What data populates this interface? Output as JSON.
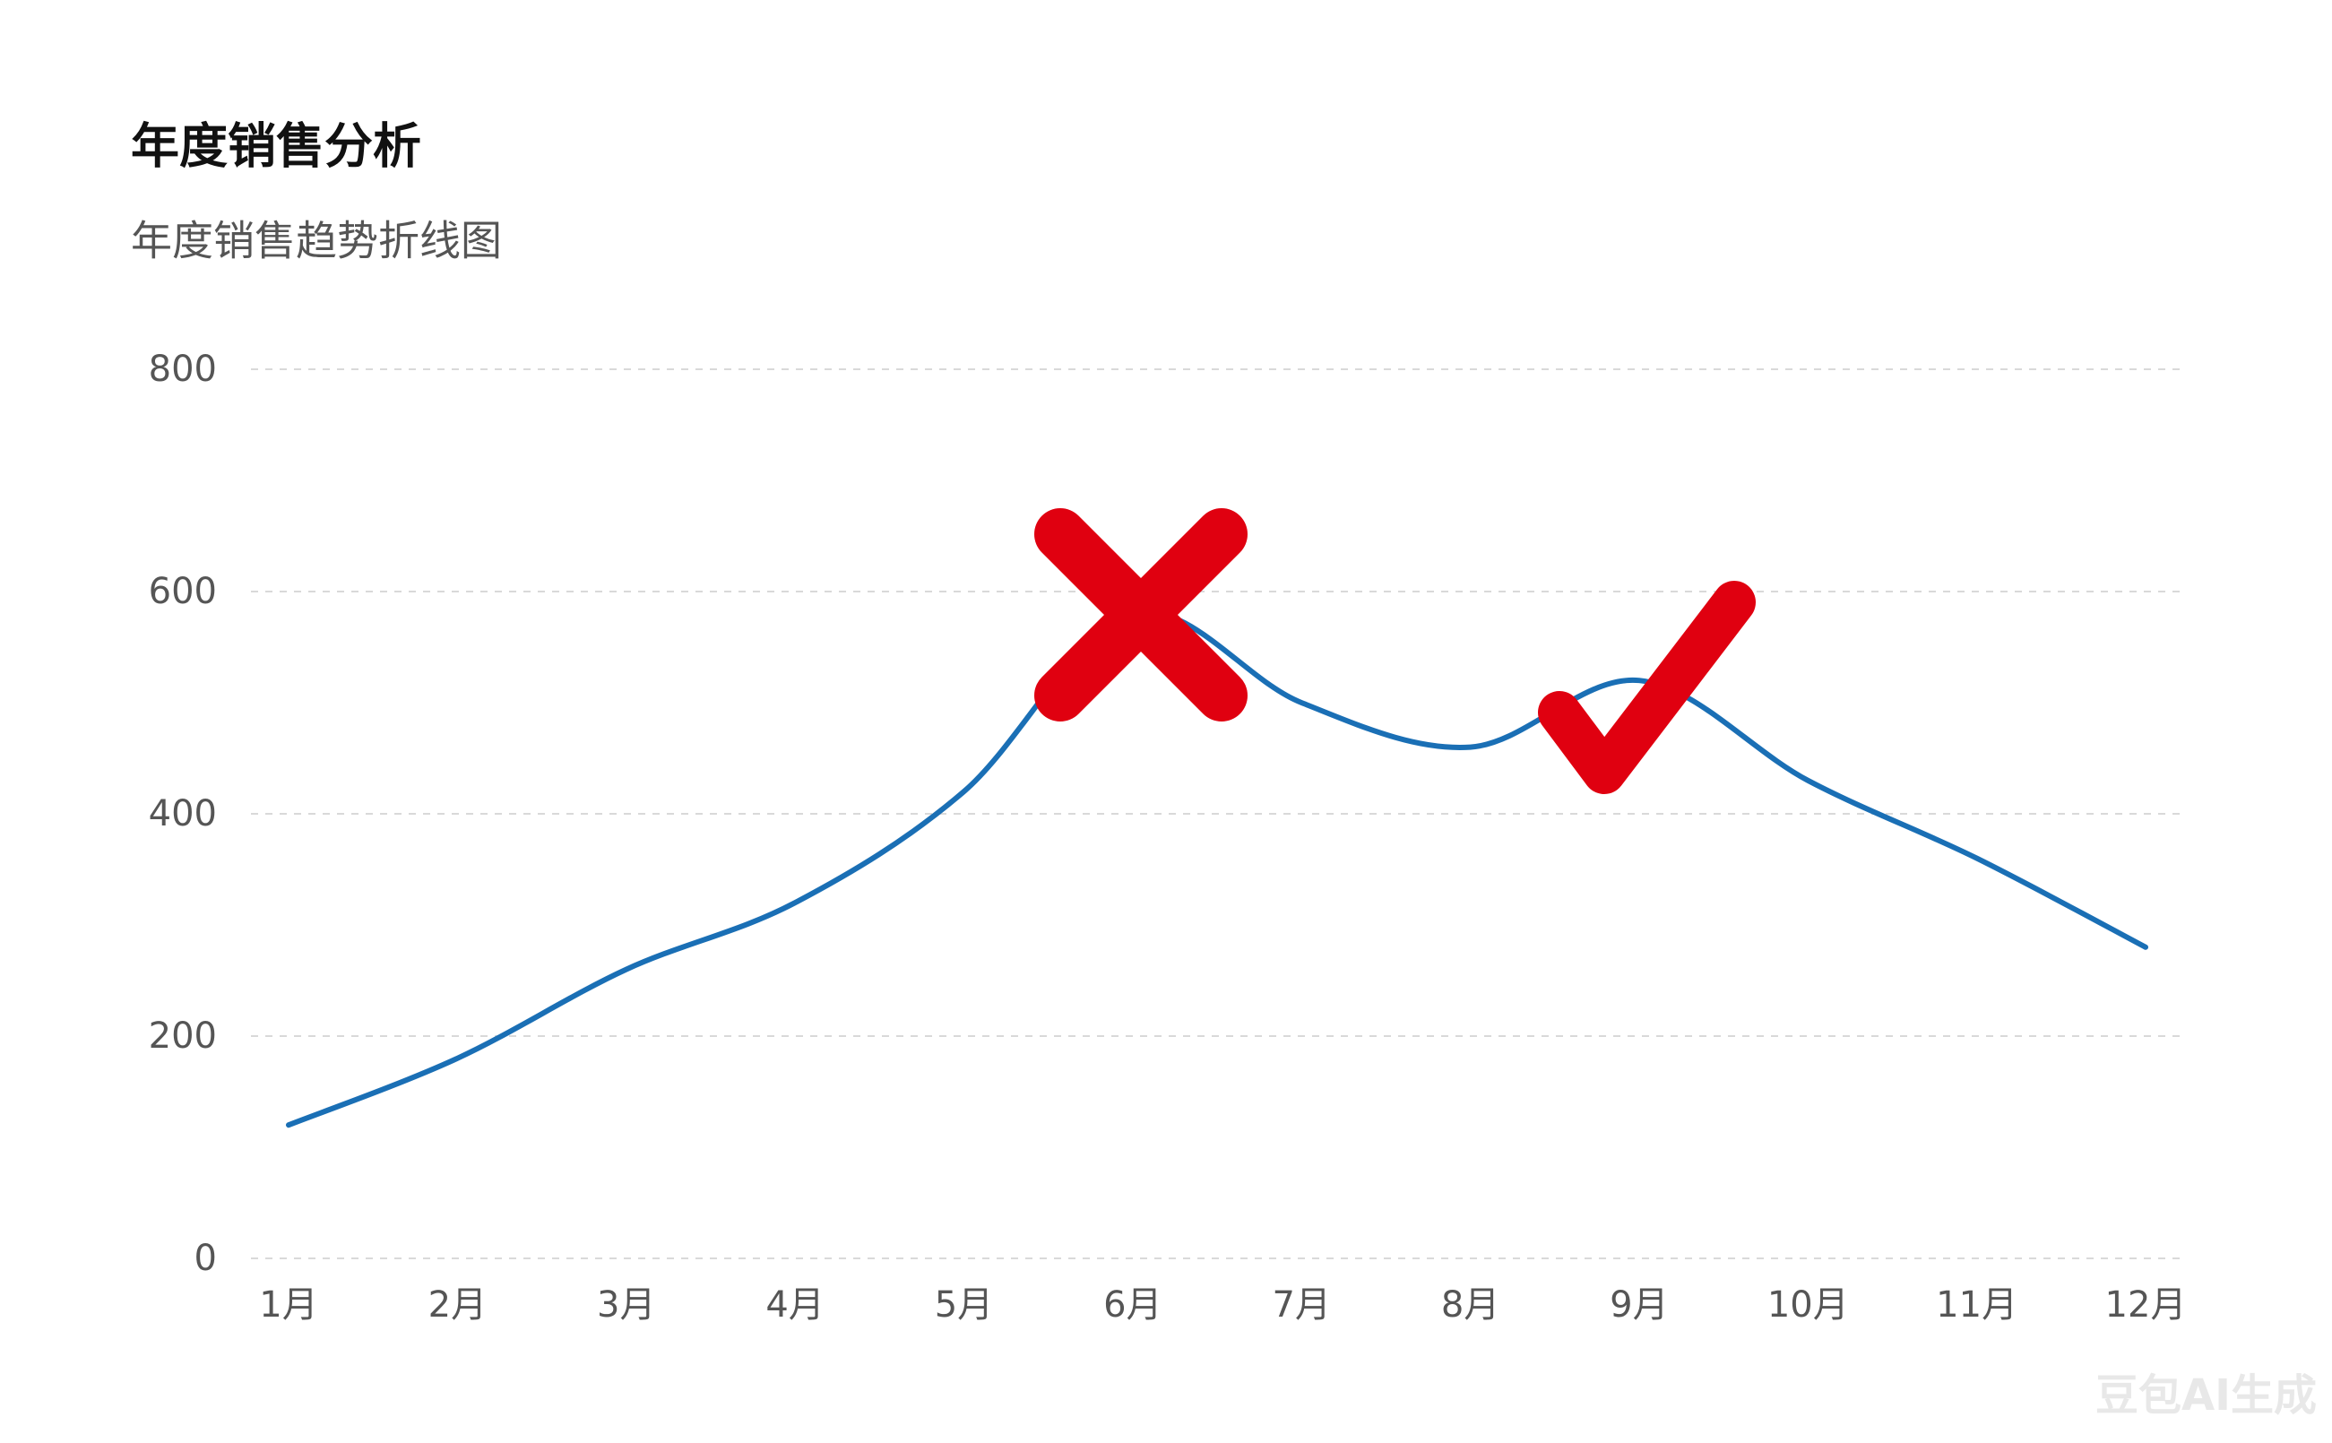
{
  "chart_data": {
    "type": "line",
    "title": "年度销售分析",
    "subtitle": "年度销售趋势折线图",
    "categories": [
      "1月",
      "2月",
      "3月",
      "4月",
      "5月",
      "6月",
      "7月",
      "8月",
      "9月",
      "10月",
      "11月",
      "12月"
    ],
    "series": [
      {
        "color": "#1a6fb5",
        "values": [
          120,
          180,
          260,
          320,
          420,
          580,
          500,
          460,
          520,
          430,
          360,
          280
        ]
      }
    ],
    "ylim": [
      0,
      800
    ],
    "yticks": [
      0,
      200,
      400,
      600,
      800
    ],
    "grid": true
  },
  "watermark": "豆包AI生成"
}
